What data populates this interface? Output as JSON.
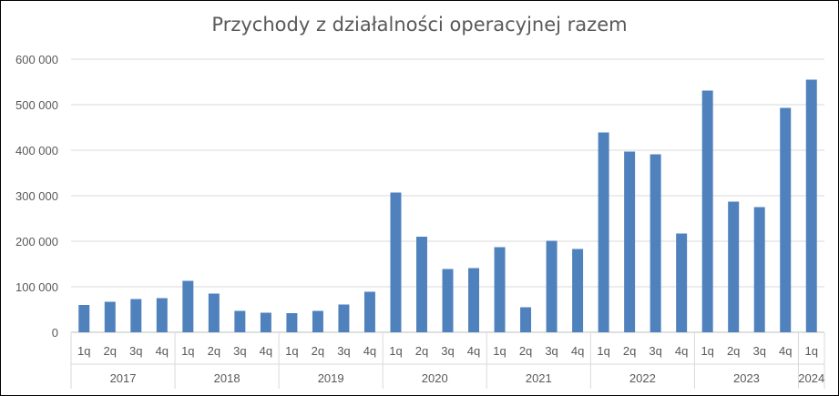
{
  "chart_data": {
    "type": "bar",
    "title": "Przychody z działalności operacyjnej razem",
    "xlabel": "",
    "ylabel": "",
    "ylim": [
      0,
      600000
    ],
    "y_ticks": [
      "0",
      "100 000",
      "200 000",
      "300 000",
      "400 000",
      "500 000",
      "600 000"
    ],
    "grid": "horizontal",
    "legend": "none",
    "bar_color": "#4f81bd",
    "categories": [
      {
        "year": "2017",
        "quarter": "1q",
        "value": 60000
      },
      {
        "year": "2017",
        "quarter": "2q",
        "value": 67000
      },
      {
        "year": "2017",
        "quarter": "3q",
        "value": 73000
      },
      {
        "year": "2017",
        "quarter": "4q",
        "value": 75000
      },
      {
        "year": "2018",
        "quarter": "1q",
        "value": 113000
      },
      {
        "year": "2018",
        "quarter": "2q",
        "value": 85000
      },
      {
        "year": "2018",
        "quarter": "3q",
        "value": 47000
      },
      {
        "year": "2018",
        "quarter": "4q",
        "value": 43000
      },
      {
        "year": "2019",
        "quarter": "1q",
        "value": 42000
      },
      {
        "year": "2019",
        "quarter": "2q",
        "value": 47000
      },
      {
        "year": "2019",
        "quarter": "3q",
        "value": 61000
      },
      {
        "year": "2019",
        "quarter": "4q",
        "value": 89000
      },
      {
        "year": "2020",
        "quarter": "1q",
        "value": 307000
      },
      {
        "year": "2020",
        "quarter": "2q",
        "value": 210000
      },
      {
        "year": "2020",
        "quarter": "3q",
        "value": 139000
      },
      {
        "year": "2020",
        "quarter": "4q",
        "value": 141000
      },
      {
        "year": "2021",
        "quarter": "1q",
        "value": 187000
      },
      {
        "year": "2021",
        "quarter": "2q",
        "value": 55000
      },
      {
        "year": "2021",
        "quarter": "3q",
        "value": 201000
      },
      {
        "year": "2021",
        "quarter": "4q",
        "value": 183000
      },
      {
        "year": "2022",
        "quarter": "1q",
        "value": 439000
      },
      {
        "year": "2022",
        "quarter": "2q",
        "value": 397000
      },
      {
        "year": "2022",
        "quarter": "3q",
        "value": 391000
      },
      {
        "year": "2022",
        "quarter": "4q",
        "value": 217000
      },
      {
        "year": "2023",
        "quarter": "1q",
        "value": 531000
      },
      {
        "year": "2023",
        "quarter": "2q",
        "value": 287000
      },
      {
        "year": "2023",
        "quarter": "3q",
        "value": 275000
      },
      {
        "year": "2023",
        "quarter": "4q",
        "value": 493000
      },
      {
        "year": "2024",
        "quarter": "1q",
        "value": 555000
      }
    ],
    "year_groups": [
      "2017",
      "2018",
      "2019",
      "2020",
      "2021",
      "2022",
      "2023",
      "2024"
    ]
  }
}
